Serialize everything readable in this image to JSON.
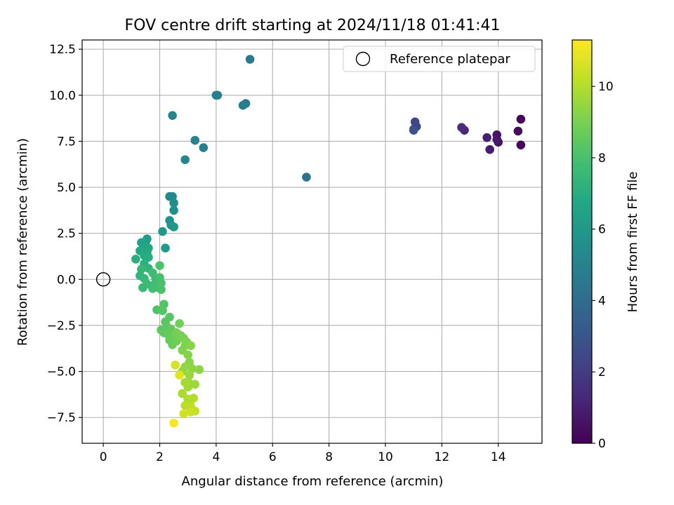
{
  "chart_data": {
    "type": "scatter",
    "title": "FOV centre drift starting at 2024/11/18 01:41:41",
    "xlabel": "Angular distance from reference (arcmin)",
    "ylabel": "Rotation from reference (arcmin)",
    "xlim": [
      -0.75,
      15.55
    ],
    "ylim": [
      -8.9,
      13.0
    ],
    "xticks": [
      0,
      2,
      4,
      6,
      8,
      10,
      12,
      14
    ],
    "xtick_labels": [
      "0",
      "2",
      "4",
      "6",
      "8",
      "10",
      "12",
      "14"
    ],
    "yticks": [
      -7.5,
      -5.0,
      -2.5,
      0.0,
      2.5,
      5.0,
      7.5,
      10.0,
      12.5
    ],
    "ytick_labels": [
      "−7.5",
      "−5.0",
      "−2.5",
      "0.0",
      "2.5",
      "5.0",
      "7.5",
      "10.0",
      "12.5"
    ],
    "grid": true,
    "legend": {
      "placement": "top-right",
      "entries": [
        "Reference platepar"
      ]
    },
    "reference_point": {
      "x": 0,
      "y": 0,
      "label": "Reference platepar"
    },
    "colorbar": {
      "label": "Hours from first FF file",
      "range": [
        0,
        11.3
      ],
      "ticks": [
        0,
        2,
        4,
        6,
        8,
        10
      ],
      "tick_labels": [
        "0",
        "2",
        "4",
        "6",
        "8",
        "10"
      ],
      "colormap": "viridis"
    },
    "points": [
      {
        "x": 14.8,
        "y": 8.7,
        "h": 0.1
      },
      {
        "x": 14.8,
        "y": 7.3,
        "h": 0.2
      },
      {
        "x": 14.7,
        "y": 8.05,
        "h": 0.35
      },
      {
        "x": 14.0,
        "y": 7.45,
        "h": 0.5
      },
      {
        "x": 13.95,
        "y": 7.85,
        "h": 0.6
      },
      {
        "x": 13.95,
        "y": 7.6,
        "h": 0.7
      },
      {
        "x": 13.7,
        "y": 7.05,
        "h": 0.85
      },
      {
        "x": 13.6,
        "y": 7.7,
        "h": 1.0
      },
      {
        "x": 12.8,
        "y": 8.1,
        "h": 1.3
      },
      {
        "x": 12.7,
        "y": 8.25,
        "h": 1.5
      },
      {
        "x": 11.1,
        "y": 8.3,
        "h": 2.2
      },
      {
        "x": 11.05,
        "y": 8.55,
        "h": 2.4
      },
      {
        "x": 11.0,
        "y": 8.15,
        "h": 2.6
      },
      {
        "x": 11.0,
        "y": 8.1,
        "h": 2.75
      },
      {
        "x": 7.2,
        "y": 5.55,
        "h": 4.3
      },
      {
        "x": 5.2,
        "y": 11.95,
        "h": 4.6
      },
      {
        "x": 5.05,
        "y": 9.55,
        "h": 4.7
      },
      {
        "x": 4.95,
        "y": 9.45,
        "h": 4.75
      },
      {
        "x": 4.05,
        "y": 10.0,
        "h": 4.85
      },
      {
        "x": 4.0,
        "y": 10.0,
        "h": 4.9
      },
      {
        "x": 3.55,
        "y": 7.15,
        "h": 4.9
      },
      {
        "x": 3.25,
        "y": 7.55,
        "h": 5.0
      },
      {
        "x": 2.9,
        "y": 6.5,
        "h": 5.05
      },
      {
        "x": 2.45,
        "y": 8.9,
        "h": 5.1
      },
      {
        "x": 2.35,
        "y": 4.5,
        "h": 5.3
      },
      {
        "x": 2.45,
        "y": 4.5,
        "h": 5.4
      },
      {
        "x": 2.5,
        "y": 4.15,
        "h": 5.5
      },
      {
        "x": 2.5,
        "y": 3.75,
        "h": 5.6
      },
      {
        "x": 2.35,
        "y": 3.2,
        "h": 5.7
      },
      {
        "x": 2.4,
        "y": 2.95,
        "h": 5.8
      },
      {
        "x": 2.5,
        "y": 2.85,
        "h": 5.9
      },
      {
        "x": 2.1,
        "y": 2.6,
        "h": 6.0
      },
      {
        "x": 2.2,
        "y": 1.7,
        "h": 6.1
      },
      {
        "x": 1.55,
        "y": 2.2,
        "h": 6.3
      },
      {
        "x": 1.5,
        "y": 2.05,
        "h": 6.4
      },
      {
        "x": 1.35,
        "y": 2.0,
        "h": 6.5
      },
      {
        "x": 1.45,
        "y": 1.8,
        "h": 6.6
      },
      {
        "x": 1.6,
        "y": 1.7,
        "h": 6.7
      },
      {
        "x": 1.3,
        "y": 1.55,
        "h": 6.8
      },
      {
        "x": 1.55,
        "y": 1.45,
        "h": 6.85
      },
      {
        "x": 1.45,
        "y": 1.3,
        "h": 6.9
      },
      {
        "x": 1.6,
        "y": 1.2,
        "h": 7.0
      },
      {
        "x": 1.15,
        "y": 1.1,
        "h": 7.1
      },
      {
        "x": 1.45,
        "y": 0.85,
        "h": 7.2
      },
      {
        "x": 1.6,
        "y": 0.6,
        "h": 7.3
      },
      {
        "x": 1.3,
        "y": 0.2,
        "h": 7.4
      },
      {
        "x": 1.35,
        "y": 0.55,
        "h": 7.45
      },
      {
        "x": 1.45,
        "y": 0.05,
        "h": 7.5
      },
      {
        "x": 1.4,
        "y": -0.45,
        "h": 7.55
      },
      {
        "x": 1.55,
        "y": -0.25,
        "h": 7.6
      },
      {
        "x": 1.75,
        "y": 0.35,
        "h": 7.7
      },
      {
        "x": 1.85,
        "y": 0.05,
        "h": 7.75
      },
      {
        "x": 1.8,
        "y": -0.3,
        "h": 7.8
      },
      {
        "x": 1.75,
        "y": -0.5,
        "h": 7.85
      },
      {
        "x": 1.95,
        "y": -0.45,
        "h": 7.9
      },
      {
        "x": 2.0,
        "y": 0.1,
        "h": 7.95
      },
      {
        "x": 2.05,
        "y": -0.2,
        "h": 8.0
      },
      {
        "x": 2.05,
        "y": -0.55,
        "h": 8.05
      },
      {
        "x": 2.0,
        "y": 0.75,
        "h": 8.1
      },
      {
        "x": 1.9,
        "y": -1.65,
        "h": 8.15
      },
      {
        "x": 2.15,
        "y": -1.35,
        "h": 8.2
      },
      {
        "x": 2.1,
        "y": -1.7,
        "h": 8.25
      },
      {
        "x": 2.35,
        "y": -2.05,
        "h": 8.3
      },
      {
        "x": 2.2,
        "y": -2.3,
        "h": 8.35
      },
      {
        "x": 2.25,
        "y": -2.55,
        "h": 8.4
      },
      {
        "x": 2.05,
        "y": -2.75,
        "h": 8.45
      },
      {
        "x": 2.15,
        "y": -2.9,
        "h": 8.5
      },
      {
        "x": 2.4,
        "y": -2.7,
        "h": 8.55
      },
      {
        "x": 2.3,
        "y": -3.0,
        "h": 8.6
      },
      {
        "x": 2.35,
        "y": -3.3,
        "h": 8.65
      },
      {
        "x": 2.5,
        "y": -3.1,
        "h": 8.7
      },
      {
        "x": 2.45,
        "y": -3.55,
        "h": 8.75
      },
      {
        "x": 2.6,
        "y": -3.35,
        "h": 8.8
      },
      {
        "x": 2.7,
        "y": -2.4,
        "h": 8.85
      },
      {
        "x": 2.6,
        "y": -2.9,
        "h": 8.9
      },
      {
        "x": 2.75,
        "y": -3.05,
        "h": 8.95
      },
      {
        "x": 2.85,
        "y": -3.2,
        "h": 9.0
      },
      {
        "x": 2.9,
        "y": -3.6,
        "h": 9.05
      },
      {
        "x": 2.95,
        "y": -3.4,
        "h": 9.1
      },
      {
        "x": 2.8,
        "y": -3.85,
        "h": 9.15
      },
      {
        "x": 3.0,
        "y": -4.1,
        "h": 9.2
      },
      {
        "x": 3.1,
        "y": -3.6,
        "h": 9.25
      },
      {
        "x": 3.05,
        "y": -4.5,
        "h": 9.3
      },
      {
        "x": 3.4,
        "y": -4.9,
        "h": 9.35
      },
      {
        "x": 3.15,
        "y": -4.85,
        "h": 9.4
      },
      {
        "x": 2.9,
        "y": -4.75,
        "h": 9.45
      },
      {
        "x": 2.8,
        "y": -5.0,
        "h": 9.5
      },
      {
        "x": 3.05,
        "y": -5.2,
        "h": 9.55
      },
      {
        "x": 3.0,
        "y": -5.55,
        "h": 9.6
      },
      {
        "x": 3.25,
        "y": -5.7,
        "h": 9.65
      },
      {
        "x": 3.0,
        "y": -5.85,
        "h": 9.7
      },
      {
        "x": 2.9,
        "y": -5.6,
        "h": 9.75
      },
      {
        "x": 2.8,
        "y": -6.2,
        "h": 9.85
      },
      {
        "x": 3.1,
        "y": -6.55,
        "h": 9.9
      },
      {
        "x": 3.0,
        "y": -6.5,
        "h": 9.95
      },
      {
        "x": 3.2,
        "y": -6.45,
        "h": 10.0
      },
      {
        "x": 2.9,
        "y": -6.85,
        "h": 10.1
      },
      {
        "x": 3.1,
        "y": -6.9,
        "h": 10.2
      },
      {
        "x": 3.25,
        "y": -7.15,
        "h": 10.3
      },
      {
        "x": 3.1,
        "y": -7.2,
        "h": 10.4
      },
      {
        "x": 2.85,
        "y": -7.3,
        "h": 10.5
      },
      {
        "x": 2.55,
        "y": -4.65,
        "h": 10.6
      },
      {
        "x": 2.7,
        "y": -5.2,
        "h": 10.8
      },
      {
        "x": 2.5,
        "y": -7.8,
        "h": 11.2
      }
    ]
  }
}
